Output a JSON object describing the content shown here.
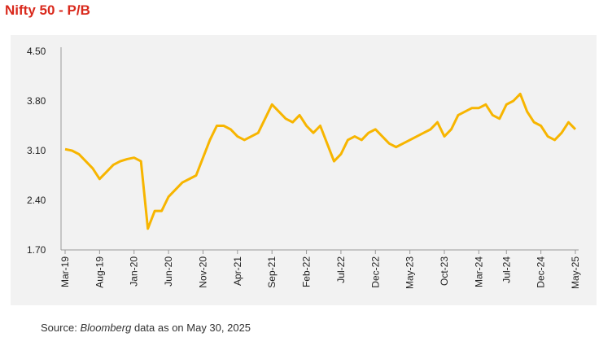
{
  "chart_data": {
    "type": "line",
    "title": "Nifty 50 - P/B",
    "source_prefix": "Source:",
    "source_italic": "Bloomberg",
    "source_suffix": "data as on May 30, 2025",
    "categories": [
      "Mar-19",
      null,
      null,
      null,
      null,
      "Aug-19",
      null,
      null,
      null,
      null,
      "Jan-20",
      null,
      null,
      null,
      null,
      "Jun-20",
      null,
      null,
      null,
      null,
      "Nov-20",
      null,
      null,
      null,
      null,
      "Apr-21",
      null,
      null,
      null,
      null,
      "Sep-21",
      null,
      null,
      null,
      null,
      "Feb-22",
      null,
      null,
      null,
      null,
      "Jul-22",
      null,
      null,
      null,
      null,
      "Dec-22",
      null,
      null,
      null,
      null,
      "May-23",
      null,
      null,
      null,
      null,
      "Oct-23",
      null,
      null,
      null,
      null,
      "Mar-24",
      null,
      null,
      null,
      "Jul-24",
      null,
      null,
      null,
      null,
      "Dec-24",
      null,
      null,
      null,
      null,
      "May-25"
    ],
    "series": [
      {
        "color": "#f7b500",
        "values": [
          3.12,
          3.1,
          3.05,
          2.95,
          2.85,
          2.7,
          2.8,
          2.9,
          2.95,
          2.98,
          3.0,
          2.95,
          2.0,
          2.25,
          2.25,
          2.45,
          2.55,
          2.65,
          2.7,
          2.75,
          3.0,
          3.25,
          3.45,
          3.45,
          3.4,
          3.3,
          3.25,
          3.3,
          3.35,
          3.55,
          3.75,
          3.65,
          3.55,
          3.5,
          3.6,
          3.45,
          3.35,
          3.45,
          3.2,
          2.95,
          3.05,
          3.25,
          3.3,
          3.25,
          3.35,
          3.4,
          3.3,
          3.2,
          3.15,
          3.2,
          3.25,
          3.3,
          3.35,
          3.4,
          3.5,
          3.3,
          3.4,
          3.6,
          3.65,
          3.7,
          3.7,
          3.75,
          3.6,
          3.55,
          3.75,
          3.8,
          3.9,
          3.65,
          3.5,
          3.45,
          3.3,
          3.25,
          3.35,
          3.5,
          3.4
        ]
      }
    ],
    "ylim": [
      1.7,
      4.5
    ],
    "yticks": [
      {
        "value": 4.5,
        "label": "4.50"
      },
      {
        "value": 3.8,
        "label": "3.80"
      },
      {
        "value": 3.1,
        "label": "3.10"
      },
      {
        "value": 2.4,
        "label": "2.40"
      },
      {
        "value": 1.7,
        "label": "1.70"
      }
    ]
  }
}
